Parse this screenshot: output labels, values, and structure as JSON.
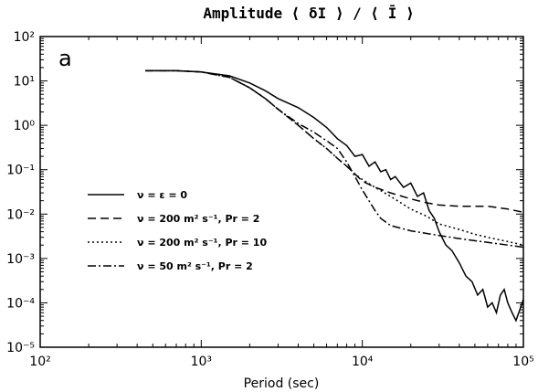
{
  "chart_data": {
    "type": "line",
    "title": "Amplitude   ⟨ δI ⟩ / ⟨ Ī ⟩",
    "panel_label": "a",
    "xlabel": "Period (sec)",
    "ylabel": "",
    "xscale": "log",
    "yscale": "log",
    "xlim": [
      100,
      100000
    ],
    "ylim": [
      1e-05,
      100
    ],
    "x_ticks": [
      {
        "value": 100,
        "label": "10²"
      },
      {
        "value": 1000,
        "label": "10³"
      },
      {
        "value": 10000,
        "label": "10⁴"
      },
      {
        "value": 100000,
        "label": "10⁵"
      }
    ],
    "y_ticks": [
      {
        "value": 100,
        "label": "10²"
      },
      {
        "value": 10,
        "label": "10¹"
      },
      {
        "value": 1,
        "label": "10⁰"
      },
      {
        "value": 0.1,
        "label": "10⁻¹"
      },
      {
        "value": 0.01,
        "label": "10⁻²"
      },
      {
        "value": 0.001,
        "label": "10⁻³"
      },
      {
        "value": 0.0001,
        "label": "10⁻⁴"
      },
      {
        "value": 1e-05,
        "label": "10⁻⁵"
      }
    ],
    "grid": false,
    "legend_position": "center-left",
    "series": [
      {
        "name": "ν = ε = 0",
        "style": "solid",
        "x": [
          450,
          700,
          1000,
          1500,
          2000,
          2500,
          3000,
          4000,
          5000,
          6000,
          7000,
          8000,
          9000,
          10000,
          11000,
          12000,
          13000,
          14000,
          15000,
          16000,
          18000,
          20000,
          22000,
          24000,
          26000,
          28000,
          30000,
          33000,
          36000,
          40000,
          44000,
          48000,
          52000,
          56000,
          60000,
          64000,
          68000,
          72000,
          76000,
          80000,
          85000,
          90000,
          95000,
          100000
        ],
        "y": [
          17,
          17,
          16,
          13,
          9,
          6,
          4,
          2.5,
          1.5,
          0.9,
          0.5,
          0.35,
          0.2,
          0.22,
          0.12,
          0.15,
          0.09,
          0.1,
          0.06,
          0.07,
          0.04,
          0.05,
          0.025,
          0.03,
          0.012,
          0.008,
          0.004,
          0.002,
          0.0015,
          0.0008,
          0.0004,
          0.0003,
          0.00015,
          0.0002,
          8e-05,
          0.0001,
          6e-05,
          0.00015,
          0.0002,
          0.0001,
          6e-05,
          4e-05,
          7e-05,
          0.00012
        ]
      },
      {
        "name": "ν = 200 m² s⁻¹, Pr = 2",
        "style": "dashed",
        "x": [
          450,
          700,
          1000,
          1500,
          2000,
          2500,
          3000,
          4000,
          5000,
          6000,
          7000,
          8000,
          9000,
          10000,
          12000,
          15000,
          20000,
          25000,
          30000,
          40000,
          50000,
          60000,
          80000,
          100000
        ],
        "y": [
          17,
          17,
          16,
          12,
          7,
          4,
          2.3,
          1,
          0.5,
          0.3,
          0.18,
          0.12,
          0.08,
          0.055,
          0.04,
          0.03,
          0.022,
          0.018,
          0.016,
          0.015,
          0.015,
          0.015,
          0.013,
          0.011
        ]
      },
      {
        "name": "ν = 200 m² s⁻¹, Pr = 10",
        "style": "dotted",
        "x": [
          450,
          700,
          1000,
          1500,
          2000,
          2500,
          3000,
          4000,
          5000,
          6000,
          7000,
          8000,
          9000,
          10000,
          12000,
          15000,
          20000,
          25000,
          30000,
          40000,
          50000,
          60000,
          80000,
          100000
        ],
        "y": [
          17,
          17,
          16,
          12,
          7,
          4,
          2.3,
          1,
          0.5,
          0.3,
          0.18,
          0.12,
          0.08,
          0.06,
          0.04,
          0.025,
          0.013,
          0.009,
          0.006,
          0.0045,
          0.0035,
          0.003,
          0.0024,
          0.002
        ]
      },
      {
        "name": "ν = 50 m² s⁻¹, Pr = 2",
        "style": "dashdot",
        "x": [
          450,
          700,
          1000,
          1500,
          2000,
          2500,
          3000,
          4000,
          5000,
          6000,
          7000,
          8000,
          9000,
          10000,
          11000,
          12000,
          13000,
          15000,
          20000,
          30000,
          40000,
          60000,
          80000,
          100000
        ],
        "y": [
          17,
          17,
          16,
          12,
          7,
          4,
          2.3,
          1.1,
          0.7,
          0.45,
          0.3,
          0.15,
          0.07,
          0.035,
          0.02,
          0.012,
          0.008,
          0.0055,
          0.0042,
          0.0033,
          0.0028,
          0.0023,
          0.002,
          0.0018
        ]
      }
    ],
    "legend": [
      "ν = ε = 0",
      "ν = 200 m² s⁻¹, Pr = 2",
      "ν = 200 m² s⁻¹, Pr = 10",
      "ν = 50 m² s⁻¹, Pr = 2"
    ]
  }
}
